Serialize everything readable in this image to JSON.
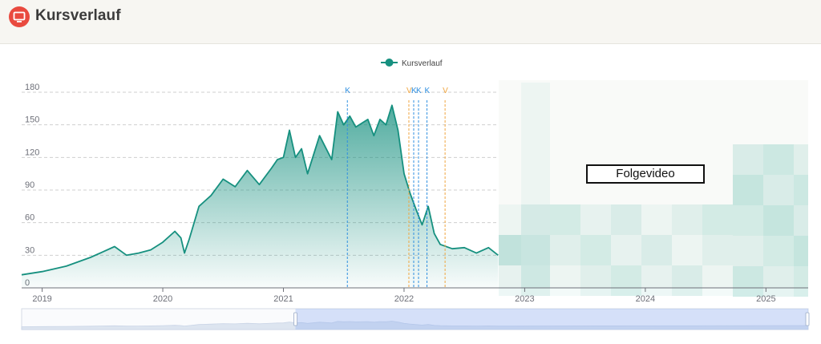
{
  "header": {
    "title": "Kursverlauf",
    "icon": "monitor-icon"
  },
  "overlay": {
    "follow_label": "Folgevideo"
  },
  "chart_data": {
    "type": "area",
    "legend": {
      "label": "Kursverlauf",
      "position": "top-center",
      "color": "#16907f"
    },
    "x_ticks": [
      "2019",
      "2020",
      "2021",
      "2022",
      "2023",
      "2024",
      "2025"
    ],
    "x_range": [
      2018.83,
      2025.35
    ],
    "y_ticks": [
      0,
      30,
      60,
      90,
      120,
      150,
      180
    ],
    "ylim": [
      0,
      180
    ],
    "grid": {
      "horizontal": true,
      "style": "dashed"
    },
    "series": [
      {
        "name": "Kursverlauf",
        "color": "#16907f",
        "x": [
          2018.83,
          2019.0,
          2019.2,
          2019.4,
          2019.5,
          2019.6,
          2019.7,
          2019.8,
          2019.9,
          2020.0,
          2020.1,
          2020.15,
          2020.18,
          2020.22,
          2020.3,
          2020.4,
          2020.5,
          2020.6,
          2020.7,
          2020.8,
          2020.9,
          2020.95,
          2021.0,
          2021.05,
          2021.1,
          2021.15,
          2021.2,
          2021.3,
          2021.4,
          2021.45,
          2021.5,
          2021.55,
          2021.6,
          2021.7,
          2021.75,
          2021.8,
          2021.85,
          2021.9,
          2021.95,
          2022.0,
          2022.05,
          2022.1,
          2022.15,
          2022.2,
          2022.25,
          2022.3,
          2022.4,
          2022.5,
          2022.6,
          2022.7,
          2022.78
        ],
        "y": [
          12,
          15,
          20,
          28,
          33,
          38,
          30,
          32,
          35,
          42,
          52,
          46,
          32,
          45,
          75,
          85,
          100,
          93,
          108,
          95,
          110,
          118,
          120,
          145,
          120,
          128,
          105,
          140,
          118,
          162,
          150,
          158,
          148,
          155,
          140,
          155,
          150,
          168,
          145,
          105,
          87,
          72,
          58,
          75,
          50,
          40,
          36,
          37,
          32,
          37,
          30
        ]
      }
    ],
    "annotations": [
      {
        "label": "K",
        "x": 2021.53,
        "color": "#2f8fe0"
      },
      {
        "label": "V",
        "x": 2022.04,
        "color": "#f0a640"
      },
      {
        "label": "K",
        "x": 2022.08,
        "color": "#2f8fe0"
      },
      {
        "label": "K",
        "x": 2022.12,
        "color": "#2f8fe0"
      },
      {
        "label": "K",
        "x": 2022.19,
        "color": "#2f8fe0"
      },
      {
        "label": "V",
        "x": 2022.34,
        "color": "#f0a640"
      }
    ],
    "range_slider": {
      "start": 2021.1,
      "end": 2025.35
    }
  }
}
